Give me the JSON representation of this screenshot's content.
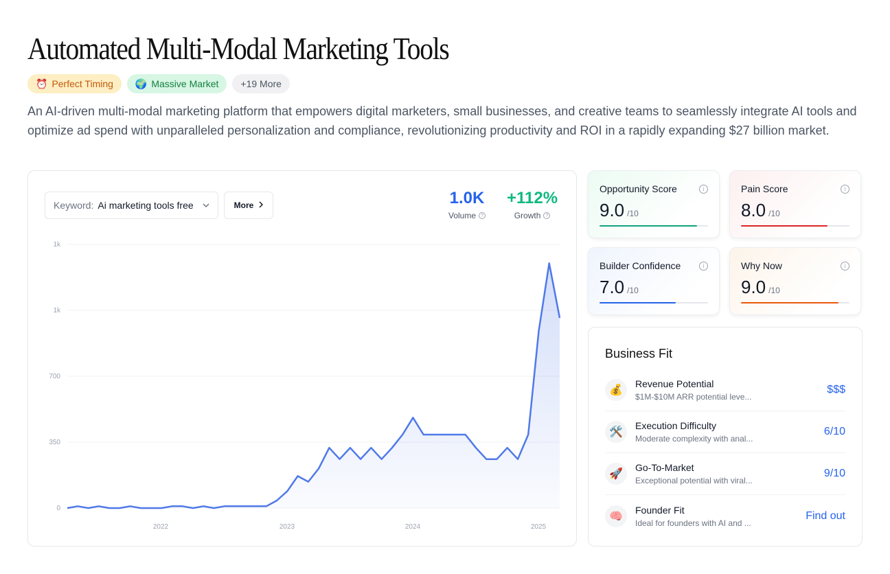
{
  "title": "Automated Multi-Modal Marketing Tools",
  "badges": [
    {
      "icon": "⏰",
      "label": "Perfect Timing"
    },
    {
      "icon": "🌍",
      "label": "Massive Market"
    },
    {
      "label": "+19 More"
    }
  ],
  "description": "An AI-driven multi-modal marketing platform that empowers digital marketers, small businesses, and creative teams to seamlessly integrate AI tools and optimize ad spend with unparalleled personalization and compliance, revolutionizing productivity and ROI in a rapidly expanding $27 billion market.",
  "keyword": {
    "label": "Keyword:",
    "value": "Ai marketing tools free"
  },
  "more_button": "More",
  "stats": {
    "volume": {
      "value": "1.0K",
      "label": "Volume",
      "color": "#2563eb"
    },
    "growth": {
      "value": "+112%",
      "label": "Growth",
      "color": "#10b981"
    }
  },
  "chart_data": {
    "type": "area",
    "yticks": [
      "1k",
      "1k",
      "700",
      "350",
      "0"
    ],
    "xticks": [
      "2022",
      "2023",
      "2024",
      "2025"
    ],
    "ylim": [
      0,
      1400
    ],
    "values": [
      0,
      10,
      0,
      10,
      0,
      0,
      10,
      0,
      0,
      0,
      10,
      10,
      0,
      10,
      0,
      10,
      10,
      10,
      10,
      10,
      40,
      90,
      170,
      140,
      210,
      320,
      260,
      320,
      260,
      320,
      260,
      320,
      390,
      480,
      390,
      390,
      390,
      390,
      390,
      320,
      260,
      260,
      320,
      260,
      390,
      940,
      1300,
      1010
    ],
    "color": "#4f79e8"
  },
  "scores": [
    {
      "title": "Opportunity Score",
      "value": "9.0",
      "suffix": "/10",
      "fraction": 0.9,
      "color": "#10a37f",
      "bg": "#ecfbf3"
    },
    {
      "title": "Pain Score",
      "value": "8.0",
      "suffix": "/10",
      "fraction": 0.8,
      "color": "#dc2626",
      "bg": "#fdf0f0"
    },
    {
      "title": "Builder Confidence",
      "value": "7.0",
      "suffix": "/10",
      "fraction": 0.7,
      "color": "#2563eb",
      "bg": "#eff4fd"
    },
    {
      "title": "Why Now",
      "value": "9.0",
      "suffix": "/10",
      "fraction": 0.9,
      "color": "#ea580c",
      "bg": "#fdf4ea"
    }
  ],
  "business_fit": {
    "title": "Business Fit",
    "rows": [
      {
        "icon": "💰",
        "title": "Revenue Potential",
        "subtitle": "$1M-$10M ARR potential leve...",
        "value": "$$$"
      },
      {
        "icon": "🛠️",
        "title": "Execution Difficulty",
        "subtitle": "Moderate complexity with anal...",
        "value": "6/10"
      },
      {
        "icon": "🚀",
        "title": "Go-To-Market",
        "subtitle": "Exceptional potential with viral...",
        "value": "9/10"
      },
      {
        "icon": "🧠",
        "title": "Founder Fit",
        "subtitle": "Ideal for founders with AI and ...",
        "value": "Find out"
      }
    ]
  }
}
